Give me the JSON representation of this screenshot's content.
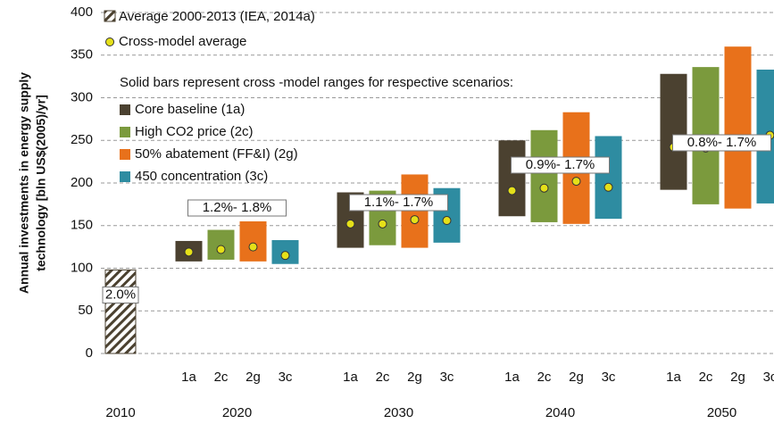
{
  "chart_data": {
    "type": "range_bar",
    "ylabel": [
      "Annual investments in energy supply",
      "technology [bln US$(2005)/yr]"
    ],
    "ylim": [
      0,
      400
    ],
    "yticks": [
      0,
      50,
      100,
      150,
      200,
      250,
      300,
      350,
      400
    ],
    "grid": true,
    "groups": [
      "2010",
      "2020",
      "2030",
      "2040",
      "2050"
    ],
    "historical": {
      "name": "Average 2000-2013 (IEA, 2014a)",
      "value": 98,
      "label": "2.0%"
    },
    "average_name": "Cross-model average",
    "note": "Solid bars represent cross -model ranges for respective scenarios:",
    "share_labels": [
      null,
      "1.2%- 1.8%",
      "1.1%- 1.7%",
      "0.9%- 1.7%",
      "0.8%- 1.7%"
    ],
    "series": [
      {
        "name": "Core baseline (1a)",
        "code": "1a",
        "color": "#4b4130",
        "low": [
          null,
          108,
          124,
          161,
          192
        ],
        "high": [
          null,
          132,
          189,
          250,
          328
        ],
        "average": [
          null,
          119,
          152,
          191,
          242
        ]
      },
      {
        "name": "High CO2 price (2c)",
        "code": "2c",
        "color": "#7b9a3d",
        "low": [
          null,
          110,
          127,
          154,
          175
        ],
        "high": [
          null,
          145,
          191,
          262,
          336
        ],
        "average": [
          null,
          122,
          152,
          194,
          241
        ]
      },
      {
        "name": "50% abatement (FF&I) (2g)",
        "code": "2g",
        "color": "#e8711b",
        "low": [
          null,
          108,
          124,
          152,
          170
        ],
        "high": [
          null,
          155,
          210,
          283,
          360
        ],
        "average": [
          null,
          125,
          157,
          202,
          250
        ]
      },
      {
        "name": "450 concentration (3c)",
        "code": "3c",
        "color": "#2e8ca1",
        "low": [
          null,
          105,
          130,
          158,
          176
        ],
        "high": [
          null,
          133,
          194,
          255,
          333
        ],
        "average": [
          null,
          115,
          156,
          195,
          256
        ]
      }
    ]
  }
}
